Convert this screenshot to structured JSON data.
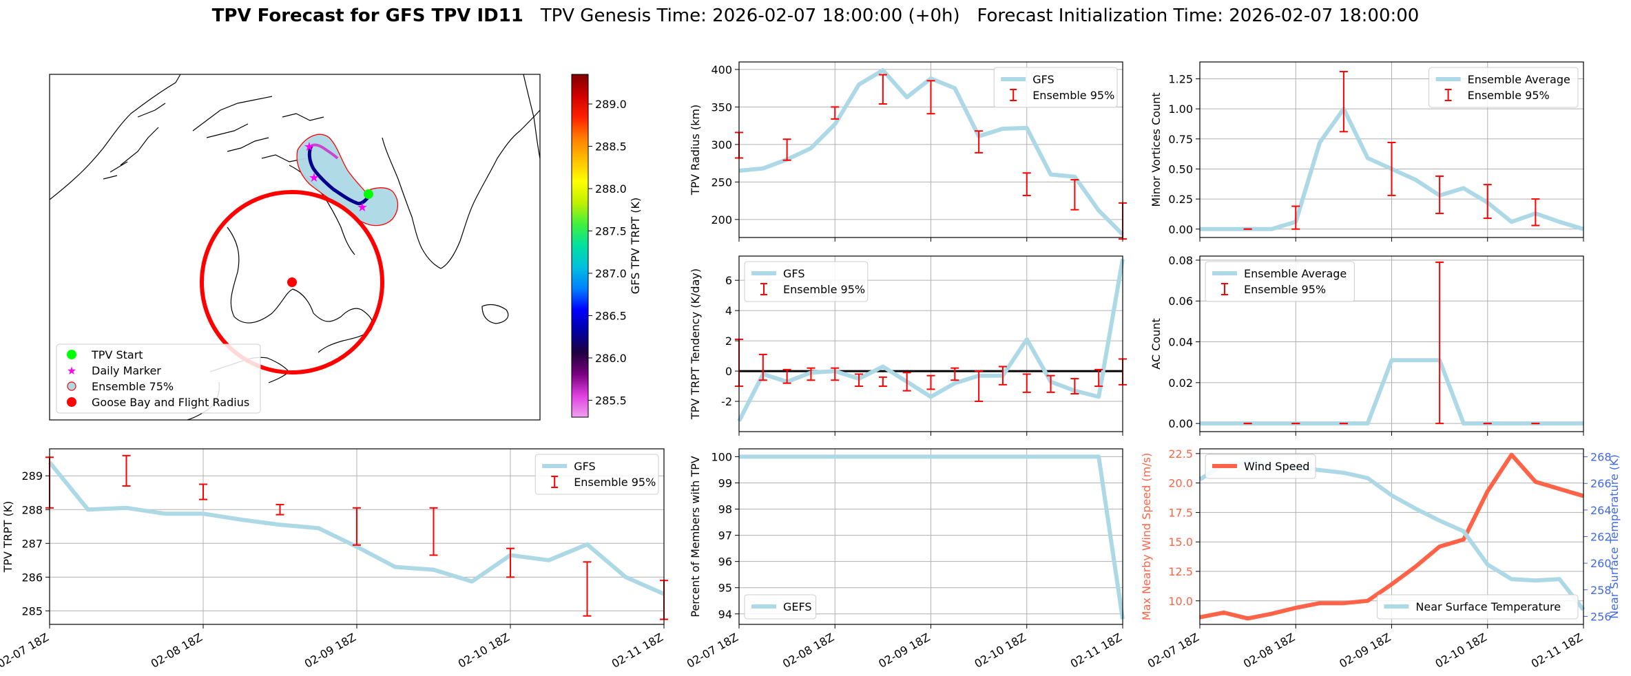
{
  "title": {
    "bold": "TPV Forecast for GFS TPV ID11",
    "genesis": "TPV Genesis Time: 2026-02-07 18:00:00 (+0h)",
    "init": "Forecast Initialization Time: 2026-02-07 18:00:00"
  },
  "colors": {
    "line": "#add8e6",
    "error": "#ff0000",
    "wind": "#ff6347",
    "temp_axis": "#4169e1",
    "grid": "#b0b0b0",
    "zero_line": "#000000",
    "tpv_start": "#00ff00",
    "daily_marker": "#ff00ff",
    "goose_bay": "#ff0000",
    "ensemble_fill": "#add8e6",
    "ensemble_edge": "#ff0000"
  },
  "map": {
    "legend": [
      "TPV Start",
      "Daily Marker",
      "Ensemble 75%",
      "Goose Bay and Flight Radius"
    ],
    "colorbar": {
      "label": "GFS TPV TRPT (K)",
      "ticks": [
        "285.5",
        "286.0",
        "286.5",
        "287.0",
        "287.5",
        "288.0",
        "288.5",
        "289.0"
      ],
      "stops": [
        "#f0a0f0",
        "#e040e0",
        "#7a0080",
        "#200040",
        "#0000a0",
        "#0000ff",
        "#0080ff",
        "#00c0e0",
        "#00e0a0",
        "#40f040",
        "#c0f000",
        "#ffff00",
        "#ffc000",
        "#ff8000",
        "#ff2000",
        "#d00000",
        "#800000"
      ]
    }
  },
  "chart_data": [
    {
      "id": "trpt",
      "type": "line",
      "ylabel": "TPV TRPT (K)",
      "xlabel": "",
      "xlim": [
        0,
        16
      ],
      "ylim": [
        284.6,
        289.8
      ],
      "yticks": [
        285,
        286,
        287,
        288,
        289
      ],
      "xtick_labels": [
        "02-07 18Z",
        "02-08 18Z",
        "02-09 18Z",
        "02-10 18Z",
        "02-11 18Z"
      ],
      "xtick_pos": [
        0,
        4,
        8,
        12,
        16
      ],
      "legend": [
        "GFS",
        "Ensemble 95%"
      ],
      "legend_pos": "top-right",
      "x": [
        0,
        1,
        2,
        3,
        4,
        5,
        6,
        7,
        8,
        9,
        10,
        11,
        12,
        13,
        14,
        15,
        16
      ],
      "values": [
        289.4,
        288.0,
        288.05,
        287.88,
        287.88,
        287.7,
        287.55,
        287.45,
        286.9,
        286.3,
        286.22,
        285.87,
        286.65,
        286.5,
        286.97,
        286.0,
        285.5
      ],
      "errorbars": [
        {
          "x": 0,
          "lo": 288.05,
          "hi": 289.55
        },
        {
          "x": 2,
          "lo": 288.7,
          "hi": 289.6
        },
        {
          "x": 4,
          "lo": 288.3,
          "hi": 288.75
        },
        {
          "x": 6,
          "lo": 287.85,
          "hi": 288.15
        },
        {
          "x": 8,
          "lo": 286.95,
          "hi": 288.05
        },
        {
          "x": 10,
          "lo": 286.65,
          "hi": 288.05
        },
        {
          "x": 12,
          "lo": 286.0,
          "hi": 286.85
        },
        {
          "x": 14,
          "lo": 284.85,
          "hi": 286.45
        },
        {
          "x": 16,
          "lo": 284.75,
          "hi": 285.9
        }
      ]
    },
    {
      "id": "radius",
      "type": "line",
      "ylabel": "TPV Radius (km)",
      "xlabel": "",
      "xlim": [
        0,
        16
      ],
      "ylim": [
        176,
        410
      ],
      "yticks": [
        200,
        250,
        300,
        350,
        400
      ],
      "xtick_labels": [],
      "xtick_pos": [
        0,
        4,
        8,
        12,
        16
      ],
      "legend": [
        "GFS",
        "Ensemble 95%"
      ],
      "legend_pos": "top-right",
      "x": [
        0,
        1,
        2,
        3,
        4,
        5,
        6,
        7,
        8,
        9,
        10,
        11,
        12,
        13,
        14,
        15,
        16
      ],
      "values": [
        265,
        268,
        280,
        295,
        327,
        380,
        399,
        363,
        388,
        375,
        311,
        321,
        322,
        260,
        257,
        212,
        180
      ],
      "errorbars": [
        {
          "x": 0,
          "lo": 282,
          "hi": 316
        },
        {
          "x": 2,
          "lo": 279,
          "hi": 307
        },
        {
          "x": 4,
          "lo": 334,
          "hi": 350
        },
        {
          "x": 6,
          "lo": 354,
          "hi": 393
        },
        {
          "x": 8,
          "lo": 341,
          "hi": 385
        },
        {
          "x": 10,
          "lo": 289,
          "hi": 318
        },
        {
          "x": 12,
          "lo": 232,
          "hi": 262
        },
        {
          "x": 14,
          "lo": 213,
          "hi": 253
        },
        {
          "x": 16,
          "lo": 174,
          "hi": 222
        }
      ]
    },
    {
      "id": "tendency",
      "type": "line",
      "ylabel": "TPV TRPT Tendency (K/day)",
      "xlabel": "",
      "xlim": [
        0,
        16
      ],
      "ylim": [
        -4.0,
        7.6
      ],
      "yticks": [
        -2,
        0,
        2,
        4,
        6
      ],
      "zero_line": true,
      "xtick_labels": [],
      "xtick_pos": [
        0,
        4,
        8,
        12,
        16
      ],
      "legend": [
        "GFS",
        "Ensemble 95%"
      ],
      "legend_pos": "top-left",
      "x": [
        0,
        1,
        2,
        3,
        4,
        5,
        6,
        7,
        8,
        9,
        10,
        11,
        12,
        13,
        14,
        15,
        16
      ],
      "values": [
        -3.3,
        -0.2,
        -0.7,
        -0.1,
        0.0,
        -0.5,
        0.3,
        -0.7,
        -1.7,
        -0.8,
        -0.3,
        -0.3,
        2.1,
        -0.7,
        -1.3,
        -1.7,
        7.4
      ],
      "errorbars": [
        {
          "x": 0,
          "lo": -1.0,
          "hi": 2.1
        },
        {
          "x": 1,
          "lo": -0.6,
          "hi": 1.1
        },
        {
          "x": 2,
          "lo": -0.8,
          "hi": 0.1
        },
        {
          "x": 3,
          "lo": -0.6,
          "hi": 0.2
        },
        {
          "x": 4,
          "lo": -0.6,
          "hi": 0.2
        },
        {
          "x": 5,
          "lo": -1.0,
          "hi": -0.2
        },
        {
          "x": 6,
          "lo": -1.0,
          "hi": -0.4
        },
        {
          "x": 7,
          "lo": -1.3,
          "hi": -0.1
        },
        {
          "x": 8,
          "lo": -1.2,
          "hi": -0.3
        },
        {
          "x": 9,
          "lo": -0.6,
          "hi": 0.2
        },
        {
          "x": 10,
          "lo": -2.0,
          "hi": 0.0
        },
        {
          "x": 11,
          "lo": -0.9,
          "hi": 0.3
        },
        {
          "x": 12,
          "lo": -1.4,
          "hi": -0.2
        },
        {
          "x": 13,
          "lo": -1.4,
          "hi": -0.3
        },
        {
          "x": 14,
          "lo": -1.5,
          "hi": -0.5
        },
        {
          "x": 15,
          "lo": -1.0,
          "hi": 0.1
        },
        {
          "x": 16,
          "lo": -0.9,
          "hi": 0.8
        }
      ]
    },
    {
      "id": "percent",
      "type": "line",
      "ylabel": "Percent of Members with TPV",
      "xlabel": "",
      "xlim": [
        0,
        16
      ],
      "ylim": [
        93.6,
        100.3
      ],
      "yticks": [
        94,
        95,
        96,
        97,
        98,
        99,
        100
      ],
      "xtick_labels": [
        "02-07 18Z",
        "02-08 18Z",
        "02-09 18Z",
        "02-10 18Z",
        "02-11 18Z"
      ],
      "xtick_pos": [
        0,
        4,
        8,
        12,
        16
      ],
      "legend": [
        "GEFS"
      ],
      "legend_pos": "bottom-left",
      "x": [
        0,
        1,
        2,
        3,
        4,
        5,
        6,
        7,
        8,
        9,
        10,
        11,
        12,
        13,
        14,
        15,
        16
      ],
      "values": [
        100,
        100,
        100,
        100,
        100,
        100,
        100,
        100,
        100,
        100,
        100,
        100,
        100,
        100,
        100,
        100,
        93.8
      ],
      "errorbars": []
    },
    {
      "id": "minor",
      "type": "line",
      "ylabel": "Minor Vortices Count",
      "xlabel": "",
      "xlim": [
        0,
        16
      ],
      "ylim": [
        -0.07,
        1.39
      ],
      "yticks": [
        0.0,
        0.25,
        0.5,
        0.75,
        1.0,
        1.25
      ],
      "ytick_labels": [
        "0.00",
        "0.25",
        "0.50",
        "0.75",
        "1.00",
        "1.25"
      ],
      "xtick_labels": [],
      "xtick_pos": [
        0,
        4,
        8,
        12,
        16
      ],
      "legend": [
        "Ensemble Average",
        "Ensemble 95%"
      ],
      "legend_pos": "top-right",
      "x": [
        0,
        1,
        2,
        3,
        4,
        5,
        6,
        7,
        8,
        9,
        10,
        11,
        12,
        13,
        14,
        15,
        16
      ],
      "values": [
        0.0,
        0.0,
        0.0,
        0.0,
        0.06,
        0.72,
        1.0,
        0.59,
        0.5,
        0.41,
        0.28,
        0.34,
        0.22,
        0.06,
        0.13,
        0.06,
        0.0
      ],
      "errorbars": [
        {
          "x": 2,
          "lo": 0.0,
          "hi": 0.0
        },
        {
          "x": 4,
          "lo": 0.0,
          "hi": 0.19
        },
        {
          "x": 6,
          "lo": 0.81,
          "hi": 1.31
        },
        {
          "x": 8,
          "lo": 0.28,
          "hi": 0.72
        },
        {
          "x": 10,
          "lo": 0.13,
          "hi": 0.44
        },
        {
          "x": 12,
          "lo": 0.09,
          "hi": 0.37
        },
        {
          "x": 14,
          "lo": 0.03,
          "hi": 0.25
        }
      ]
    },
    {
      "id": "ac",
      "type": "line",
      "ylabel": "AC Count",
      "xlabel": "",
      "xlim": [
        0,
        16
      ],
      "ylim": [
        -0.004,
        0.082
      ],
      "yticks": [
        0.0,
        0.02,
        0.04,
        0.06,
        0.08
      ],
      "ytick_labels": [
        "0.00",
        "0.02",
        "0.04",
        "0.06",
        "0.08"
      ],
      "xtick_labels": [],
      "xtick_pos": [
        0,
        4,
        8,
        12,
        16
      ],
      "legend": [
        "Ensemble Average",
        "Ensemble 95%"
      ],
      "legend_pos": "top-left",
      "x": [
        0,
        1,
        2,
        3,
        4,
        5,
        6,
        7,
        8,
        9,
        10,
        11,
        12,
        13,
        14,
        15,
        16
      ],
      "values": [
        0,
        0,
        0,
        0,
        0,
        0,
        0,
        0,
        0.031,
        0.031,
        0.031,
        0,
        0,
        0,
        0,
        0,
        0
      ],
      "errorbars": [
        {
          "x": 2,
          "lo": 0,
          "hi": 0
        },
        {
          "x": 4,
          "lo": 0,
          "hi": 0
        },
        {
          "x": 6,
          "lo": 0,
          "hi": 0
        },
        {
          "x": 10,
          "lo": 0,
          "hi": 0.079
        },
        {
          "x": 12,
          "lo": 0,
          "hi": 0
        },
        {
          "x": 14,
          "lo": 0,
          "hi": 0
        }
      ]
    },
    {
      "id": "wind_temp",
      "type": "line",
      "ylabel": "Max Nearby Wind Speed (m/s)",
      "ylabel2": "Near Surface Temperature (K)",
      "xlabel": "",
      "xlim": [
        0,
        16
      ],
      "ylim": [
        8.0,
        22.9
      ],
      "yticks": [
        10.0,
        12.5,
        15.0,
        17.5,
        20.0,
        22.5
      ],
      "ytick_labels": [
        "10.0",
        "12.5",
        "15.0",
        "17.5",
        "20.0",
        "22.5"
      ],
      "ylim2": [
        255.4,
        268.6
      ],
      "yticks2": [
        256,
        258,
        260,
        262,
        264,
        266,
        268
      ],
      "xtick_labels": [
        "02-07 18Z",
        "02-08 18Z",
        "02-09 18Z",
        "02-10 18Z",
        "02-11 18Z"
      ],
      "xtick_pos": [
        0,
        4,
        8,
        12,
        16
      ],
      "legend": [
        "Wind Speed"
      ],
      "legend2": [
        "Near Surface Temperature"
      ],
      "x": [
        0,
        1,
        2,
        3,
        4,
        5,
        6,
        7,
        8,
        9,
        10,
        11,
        12,
        13,
        14,
        15,
        16
      ],
      "series": [
        {
          "name": "Wind Speed",
          "axis": "left",
          "values": [
            8.6,
            9.0,
            8.5,
            8.9,
            9.4,
            9.8,
            9.8,
            10.0,
            11.4,
            12.9,
            14.6,
            15.2,
            19.3,
            22.4,
            20.1,
            19.5,
            18.9
          ]
        },
        {
          "name": "Near Surface Temperature",
          "axis": "right",
          "values": [
            266.3,
            267.4,
            267.6,
            267.4,
            267.2,
            267.0,
            266.8,
            266.4,
            265.1,
            264.1,
            263.2,
            262.4,
            259.9,
            258.8,
            258.7,
            258.8,
            256.5
          ]
        }
      ]
    }
  ]
}
